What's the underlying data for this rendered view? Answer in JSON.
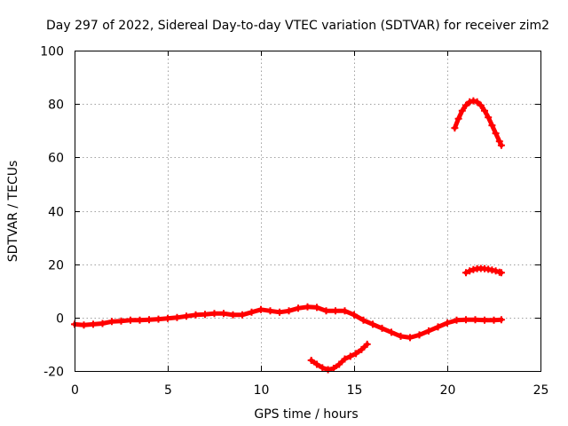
{
  "chart_data": {
    "type": "scatter",
    "title": "Day 297 of 2022, Sidereal Day-to-day VTEC variation (SDTVAR) for receiver zim2",
    "xlabel": "GPS time / hours",
    "ylabel": "SDTVAR / TECUs",
    "xlim": [
      0,
      25
    ],
    "ylim": [
      -20,
      100
    ],
    "xticks": [
      0,
      5,
      10,
      15,
      20,
      25
    ],
    "yticks": [
      -20,
      0,
      20,
      40,
      60,
      80,
      100
    ],
    "grid": true,
    "marker_color": "#ff0000",
    "series": [
      {
        "name": "main",
        "x": [
          0,
          0.5,
          1,
          1.5,
          2,
          2.5,
          3,
          3.5,
          4,
          4.5,
          5,
          5.5,
          6,
          6.5,
          7,
          7.5,
          8,
          8.5,
          9,
          9.5,
          10,
          10.5,
          11,
          11.5,
          12,
          12.5,
          13,
          13.5,
          14,
          14.5,
          15,
          15.5,
          16,
          16.5,
          17,
          17.5,
          18,
          18.5,
          19,
          19.5,
          20,
          20.5,
          21,
          21.5,
          22,
          22.5,
          22.9
        ],
        "y": [
          -2.5,
          -2.8,
          -2.5,
          -2.2,
          -1.5,
          -1.3,
          -1.0,
          -1.0,
          -0.8,
          -0.6,
          -0.3,
          0,
          0.5,
          1.0,
          1.2,
          1.5,
          1.5,
          1.0,
          1.0,
          2.0,
          3.0,
          2.5,
          2.0,
          2.5,
          3.5,
          4.0,
          3.8,
          2.5,
          2.5,
          2.5,
          1.0,
          -1.0,
          -2.5,
          -4.0,
          -5.5,
          -7.0,
          -7.5,
          -6.5,
          -5.0,
          -3.5,
          -2.0,
          -1.0,
          -0.8,
          -0.8,
          -1.0,
          -1.0,
          -0.8
        ]
      },
      {
        "name": "segment-low",
        "x": [
          12.7,
          13.0,
          13.3,
          13.6,
          13.9,
          14.2,
          14.5,
          14.8,
          15.1,
          15.4,
          15.7
        ],
        "y": [
          -16.0,
          -17.5,
          -18.8,
          -19.5,
          -19.0,
          -17.5,
          -15.5,
          -14.5,
          -13.5,
          -12.0,
          -10.0
        ]
      },
      {
        "name": "segment-high",
        "x": [
          20.4,
          20.6,
          20.8,
          21.0,
          21.2,
          21.4,
          21.6,
          21.8,
          22.0,
          22.2,
          22.4,
          22.6,
          22.8,
          22.9
        ],
        "y": [
          71,
          74.5,
          77.5,
          79.5,
          80.8,
          81.2,
          80.8,
          79.5,
          77.5,
          75,
          72,
          69,
          66,
          64.5
        ]
      },
      {
        "name": "segment-mid",
        "x": [
          21.0,
          21.2,
          21.4,
          21.6,
          21.8,
          22.0,
          22.2,
          22.4,
          22.6,
          22.8,
          22.9
        ],
        "y": [
          16.8,
          17.5,
          18.0,
          18.3,
          18.4,
          18.3,
          18.1,
          17.8,
          17.5,
          17.0,
          16.8
        ]
      }
    ]
  }
}
